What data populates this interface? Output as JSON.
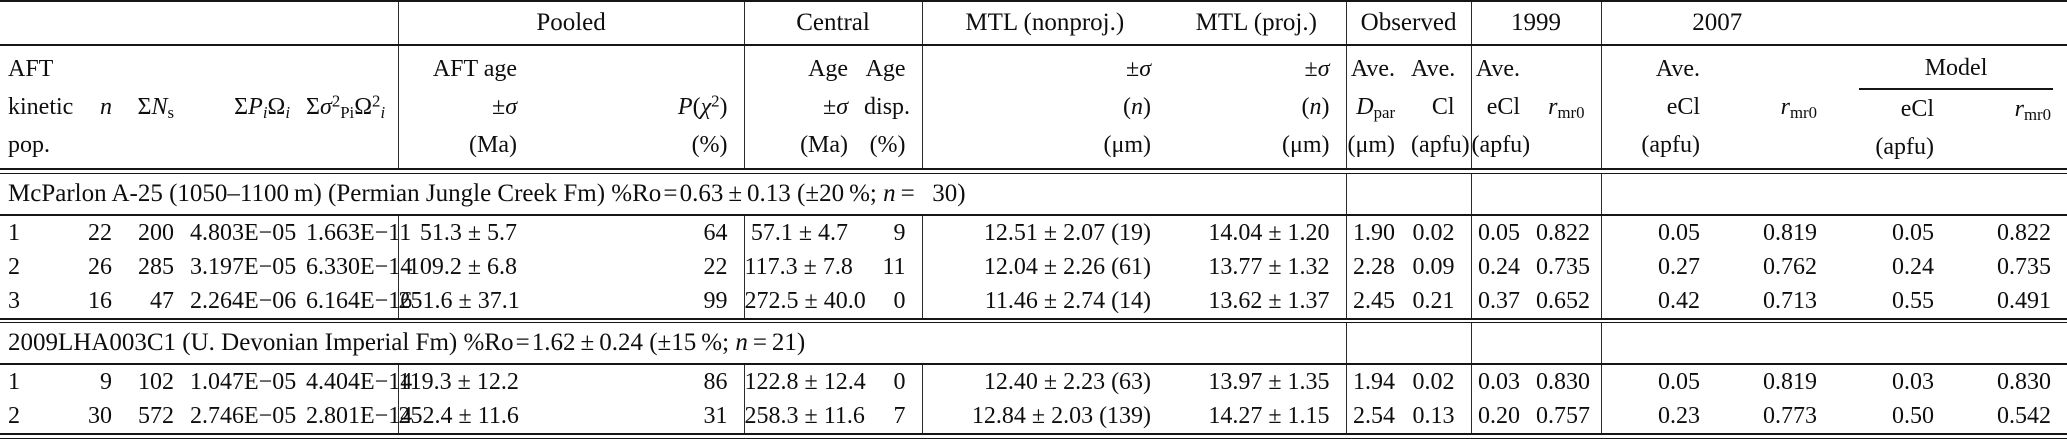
{
  "table": {
    "groups": {
      "pooled": "Pooled",
      "central": "Central",
      "mtl_nonproj": "MTL (nonproj.)",
      "mtl_proj": "MTL (proj.)",
      "observed": "Observed",
      "y1999": "1999",
      "y2007": "2007"
    },
    "header": {
      "c1": [
        "AFT",
        "kinetic",
        "pop."
      ],
      "c2": [
        "",
        "<i>n</i>",
        ""
      ],
      "c3": [
        "",
        "&#931;<i>N</i><sub>s</sub>",
        ""
      ],
      "c4": [
        "",
        "&#931;<i>P<sub>i</sub></i>&#937;<i><sub>i</sub></i>",
        ""
      ],
      "c5": [
        "",
        "&#931;<i>&#963;</i><sup>2</sup><sub>Pi</sub>&#937;<sup>2</sup><i><sub>i</sub></i>",
        ""
      ],
      "c6": [
        "AFT age",
        "&#177;<i>&#963;</i>",
        "(Ma)"
      ],
      "c7": [
        "",
        "<i>P</i>(<i>&#967;</i><sup>2</sup>)",
        "(%)"
      ],
      "c8": [
        "Age",
        "&#177;<i>&#963;</i>",
        "(Ma)"
      ],
      "c9": [
        "Age",
        "disp.",
        "(%)"
      ],
      "c10": [
        "&#177;<i>&#963;</i>",
        "(<i>n</i>)",
        "(&#956;m)"
      ],
      "c11": [
        "&#177;<i>&#963;</i>",
        "(<i>n</i>)",
        "(&#956;m)"
      ],
      "c12": [
        "Ave.",
        "<i>D</i><sub>par</sub>",
        "(&#956;m)"
      ],
      "c13": [
        "Ave.",
        "Cl",
        "(apfu)"
      ],
      "c14": [
        "Ave.",
        "eCl",
        "(apfu)"
      ],
      "c15": [
        "",
        "<i>r</i><sub>mr0</sub>",
        ""
      ],
      "c16": [
        "Ave.",
        "eCl",
        "(apfu)"
      ],
      "c17": [
        "",
        "<i>r</i><sub>mr0</sub>",
        ""
      ],
      "model": {
        "label": "Model",
        "ecl": "eCl",
        "rmr0": "<i>r</i><sub>mr0</sub>",
        "ecl_units": "(apfu)",
        "rmr0_units": ""
      }
    },
    "sections": [
      {
        "title": "McParlon A-25 (1050&#8211;1100&#8201;m) (Permian Jungle Creek Fm) %Ro&#8202;=&#8202;0.63&#8201;&#177;&#8201;0.13 (&#177;20&#8201;%; <i>n</i>&#8201;=&#8201;&#8194;30)",
        "rows": [
          [
            "1",
            "22",
            "200",
            "4.803E&#8722;05",
            "1.663E&#8722;11",
            "51.3 &#177; 5.7",
            "64",
            "57.1 &#177; 4.7",
            "9",
            "12.51 &#177; 2.07 (19)",
            "14.04 &#177; 1.20",
            "1.90",
            "0.02",
            "0.05",
            "0.822",
            "0.05",
            "0.819",
            "0.05",
            "0.822"
          ],
          [
            "2",
            "26",
            "285",
            "3.197E&#8722;05",
            "6.330E&#8722;14",
            "109.2 &#177; 6.8",
            "22",
            "117.3 &#177; 7.8",
            "11",
            "12.04 &#177; 2.26 (61)",
            "13.77 &#177; 1.32",
            "2.28",
            "0.09",
            "0.24",
            "0.735",
            "0.27",
            "0.762",
            "0.24",
            "0.735"
          ],
          [
            "3",
            "16",
            "47",
            "2.264E&#8722;06",
            "6.164E&#8722;16",
            "251.6 &#177; 37.1",
            "99",
            "272.5 &#177; 40.0",
            "0",
            "11.46 &#177; 2.74 (14)",
            "13.62 &#177; 1.37",
            "2.45",
            "0.21",
            "0.37",
            "0.652",
            "0.42",
            "0.713",
            "0.55",
            "0.491"
          ]
        ]
      },
      {
        "title": "2009LHA003C1 (U. Devonian Imperial Fm) %Ro&#8202;=&#8202;1.62&#8201;&#177;&#8201;0.24 (&#177;15&#8201;%; <i>n</i>&#8201;=&#8201;21)",
        "rows": [
          [
            "1",
            "9",
            "102",
            "1.047E&#8722;05",
            "4.404E&#8722;14",
            "119.3 &#177; 12.2",
            "86",
            "122.8 &#177; 12.4",
            "0",
            "12.40 &#177; 2.23 (63)",
            "13.97 &#177; 1.35",
            "1.94",
            "0.02",
            "0.03",
            "0.830",
            "0.05",
            "0.819",
            "0.03",
            "0.830"
          ],
          [
            "2",
            "30",
            "572",
            "2.746E&#8722;05",
            "2.801E&#8722;14",
            "252.4 &#177; 11.6",
            "31",
            "258.3 &#177; 11.6",
            "7",
            "12.84 &#177; 2.03 (139)",
            "14.27 &#177; 1.15",
            "2.54",
            "0.13",
            "0.20",
            "0.757",
            "0.23",
            "0.773",
            "0.50",
            "0.542"
          ]
        ]
      }
    ]
  }
}
